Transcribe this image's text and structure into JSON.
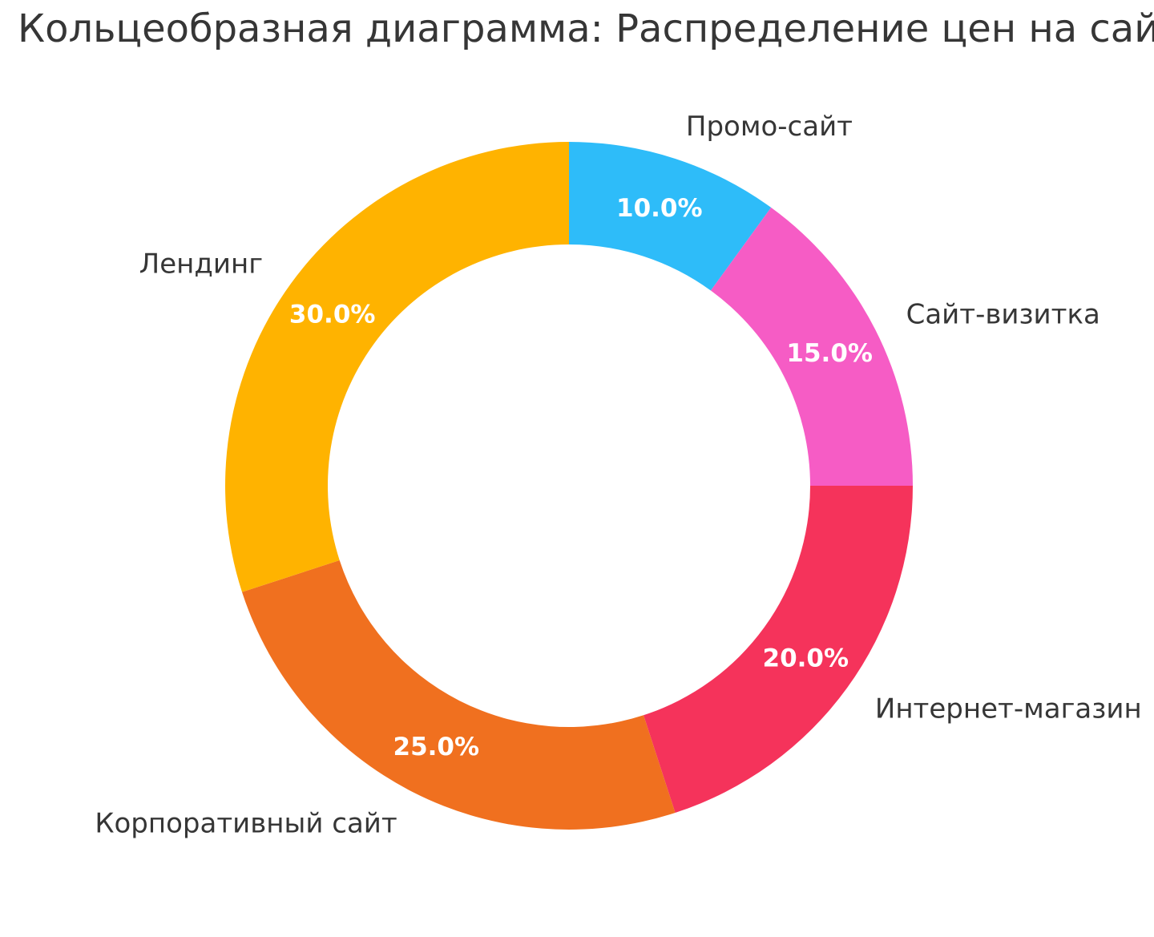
{
  "title": "Кольцеобразная диаграмма: Распределение цен на сайты",
  "chart_data": {
    "type": "pie",
    "subtype": "donut",
    "title": "Кольцеобразная диаграмма: Распределение цен на сайты",
    "categories": [
      "Промо-сайт",
      "Сайт-визитка",
      "Интернет-магазин",
      "Корпоративный сайт",
      "Лендинг"
    ],
    "values": [
      10.0,
      15.0,
      20.0,
      25.0,
      30.0
    ],
    "percent_labels": [
      "10.0%",
      "15.0%",
      "20.0%",
      "25.0%",
      "30.0%"
    ],
    "colors": [
      "#2EBCF9",
      "#F65CC5",
      "#F5335B",
      "#F0701F",
      "#FFB300"
    ],
    "start_angle": "top",
    "direction": "clockwise",
    "donut_hole_ratio": 0.7,
    "labels_position": "outside",
    "percent_labels_position": "mid-ring",
    "legend": "none",
    "background_color": "#FFFFFF",
    "label_text_color": "#363636",
    "percent_text_color": "#FFFFFF"
  }
}
